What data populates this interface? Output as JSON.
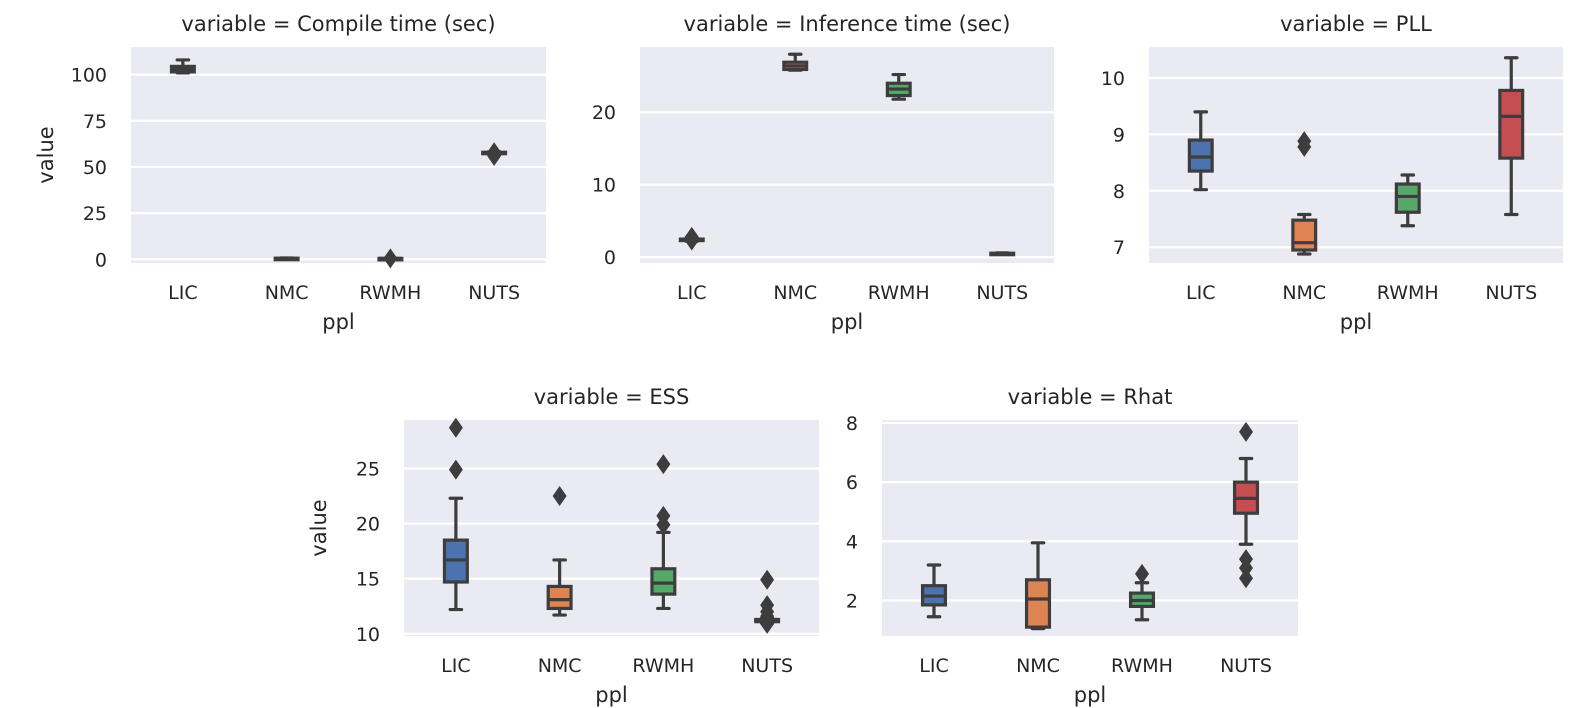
{
  "chart_data": [
    {
      "type": "box",
      "title": "variable = Compile time (sec)",
      "xlabel": "ppl",
      "ylabel": "value",
      "categories": [
        "LIC",
        "NMC",
        "RWMH",
        "NUTS"
      ],
      "ylim": [
        -2,
        115
      ],
      "yticks": [
        0,
        25,
        50,
        75,
        100
      ],
      "boxes": [
        {
          "category": "LIC",
          "whislo": 101,
          "q1": 101.5,
          "med": 103,
          "q3": 104.5,
          "whishi": 108,
          "fliers": []
        },
        {
          "category": "NMC",
          "whislo": 0.3,
          "q1": 0.4,
          "med": 0.5,
          "q3": 0.6,
          "whishi": 0.7,
          "fliers": []
        },
        {
          "category": "RWMH",
          "whislo": 0.4,
          "q1": 0.4,
          "med": 0.5,
          "q3": 0.5,
          "whishi": 0.6,
          "fliers": [
            0.5
          ]
        },
        {
          "category": "NUTS",
          "whislo": 57,
          "q1": 57.3,
          "med": 57.6,
          "q3": 58,
          "whishi": 58.3,
          "fliers": [
            58,
            56
          ]
        }
      ]
    },
    {
      "type": "box",
      "title": "variable = Inference time (sec)",
      "xlabel": "ppl",
      "ylabel": "",
      "categories": [
        "LIC",
        "NMC",
        "RWMH",
        "NUTS"
      ],
      "ylim": [
        -0.8,
        29
      ],
      "yticks": [
        0,
        10,
        20
      ],
      "boxes": [
        {
          "category": "LIC",
          "whislo": 2.2,
          "q1": 2.3,
          "med": 2.4,
          "q3": 2.5,
          "whishi": 2.6,
          "fliers": [
            2.8,
            2.3
          ]
        },
        {
          "category": "NMC",
          "whislo": 25.8,
          "q1": 25.9,
          "med": 26.4,
          "q3": 26.9,
          "whishi": 28.0,
          "fliers": []
        },
        {
          "category": "RWMH",
          "whislo": 21.8,
          "q1": 22.3,
          "med": 23.2,
          "q3": 24.0,
          "whishi": 25.2,
          "fliers": []
        },
        {
          "category": "NUTS",
          "whislo": 0.4,
          "q1": 0.45,
          "med": 0.5,
          "q3": 0.55,
          "whishi": 0.6,
          "fliers": []
        }
      ]
    },
    {
      "type": "box",
      "title": "variable = PLL",
      "xlabel": "ppl",
      "ylabel": "",
      "categories": [
        "LIC",
        "NMC",
        "RWMH",
        "NUTS"
      ],
      "ylim": [
        6.72,
        10.55
      ],
      "yticks": [
        7,
        8,
        9,
        10
      ],
      "boxes": [
        {
          "category": "LIC",
          "whislo": 8.02,
          "q1": 8.35,
          "med": 8.6,
          "q3": 8.9,
          "whishi": 9.4,
          "fliers": []
        },
        {
          "category": "NMC",
          "whislo": 6.88,
          "q1": 6.95,
          "med": 7.08,
          "q3": 7.48,
          "whishi": 7.58,
          "fliers": [
            8.88,
            8.78
          ]
        },
        {
          "category": "RWMH",
          "whislo": 7.38,
          "q1": 7.62,
          "med": 7.9,
          "q3": 8.12,
          "whishi": 8.28,
          "fliers": []
        },
        {
          "category": "NUTS",
          "whislo": 7.58,
          "q1": 8.58,
          "med": 9.32,
          "q3": 9.78,
          "whishi": 10.36,
          "fliers": []
        }
      ]
    },
    {
      "type": "box",
      "title": "variable = ESS",
      "xlabel": "ppl",
      "ylabel": "value",
      "categories": [
        "LIC",
        "NMC",
        "RWMH",
        "NUTS"
      ],
      "ylim": [
        9.8,
        29.4
      ],
      "yticks": [
        10,
        15,
        20,
        25
      ],
      "boxes": [
        {
          "category": "LIC",
          "whislo": 12.2,
          "q1": 14.7,
          "med": 16.7,
          "q3": 18.5,
          "whishi": 22.3,
          "fliers": [
            28.7,
            24.9
          ]
        },
        {
          "category": "NMC",
          "whislo": 11.7,
          "q1": 12.3,
          "med": 13.1,
          "q3": 14.3,
          "whishi": 16.7,
          "fliers": [
            22.5
          ]
        },
        {
          "category": "RWMH",
          "whislo": 12.3,
          "q1": 13.6,
          "med": 14.6,
          "q3": 15.9,
          "whishi": 19.2,
          "fliers": [
            25.4,
            20.7,
            19.9
          ]
        },
        {
          "category": "NUTS",
          "whislo": 11.0,
          "q1": 11.1,
          "med": 11.2,
          "q3": 11.3,
          "whishi": 11.4,
          "fliers": [
            14.9,
            12.6,
            12.0,
            11.6,
            10.9
          ]
        }
      ]
    },
    {
      "type": "box",
      "title": "variable = Rhat",
      "xlabel": "ppl",
      "ylabel": "",
      "categories": [
        "LIC",
        "NMC",
        "RWMH",
        "NUTS"
      ],
      "ylim": [
        0.8,
        8.1
      ],
      "yticks": [
        2,
        4,
        6,
        8
      ],
      "boxes": [
        {
          "category": "LIC",
          "whislo": 1.45,
          "q1": 1.85,
          "med": 2.15,
          "q3": 2.5,
          "whishi": 3.2,
          "fliers": []
        },
        {
          "category": "NMC",
          "whislo": 1.05,
          "q1": 1.1,
          "med": 2.05,
          "q3": 2.7,
          "whishi": 3.95,
          "fliers": []
        },
        {
          "category": "RWMH",
          "whislo": 1.35,
          "q1": 1.8,
          "med": 2.0,
          "q3": 2.25,
          "whishi": 2.6,
          "fliers": [
            2.9
          ]
        },
        {
          "category": "NUTS",
          "whislo": 3.9,
          "q1": 4.95,
          "med": 5.45,
          "q3": 6.0,
          "whishi": 6.8,
          "fliers": [
            7.7,
            3.4,
            3.1,
            2.75
          ]
        }
      ]
    }
  ],
  "colors": {
    "background": "#eaeaf2",
    "grid": "#ffffff",
    "line": "#3d3d3d",
    "text": "#262626",
    "LIC": "#4c72b0",
    "NMC": "#dd8452",
    "RWMH": "#55a868",
    "NUTS": "#c44e52"
  }
}
